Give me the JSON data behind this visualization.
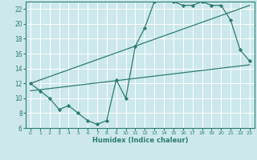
{
  "xlabel": "Humidex (Indice chaleur)",
  "bg_color": "#cce8ec",
  "grid_color": "#ffffff",
  "line_color": "#2e7d6e",
  "xlim": [
    -0.5,
    23.5
  ],
  "ylim": [
    6,
    23
  ],
  "xticks": [
    0,
    1,
    2,
    3,
    4,
    5,
    6,
    7,
    8,
    9,
    10,
    11,
    12,
    13,
    14,
    15,
    16,
    17,
    18,
    19,
    20,
    21,
    22,
    23
  ],
  "yticks": [
    6,
    8,
    10,
    12,
    14,
    16,
    18,
    20,
    22
  ],
  "line1_x": [
    0,
    1,
    2,
    3,
    4,
    5,
    6,
    7,
    8,
    9,
    10,
    11,
    12,
    13,
    14,
    15,
    16,
    17,
    18,
    19,
    20,
    21,
    22,
    23
  ],
  "line1_y": [
    12,
    11,
    10,
    8.5,
    9,
    8,
    7,
    6.5,
    7,
    12.5,
    10,
    17,
    19.5,
    23,
    23.5,
    23,
    22.5,
    22.5,
    23,
    22.5,
    22.5,
    20.5,
    16.5,
    15
  ],
  "line2_x": [
    0,
    23
  ],
  "line2_y": [
    11.0,
    14.5
  ],
  "line3_x": [
    0,
    23
  ],
  "line3_y": [
    12.0,
    22.5
  ]
}
